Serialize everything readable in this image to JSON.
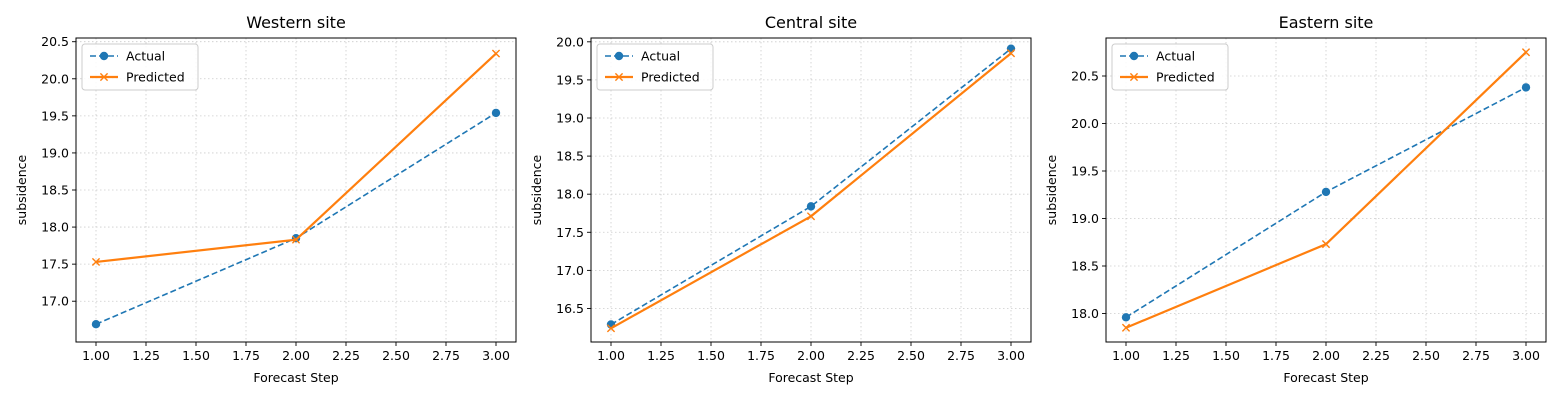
{
  "chart_data": [
    {
      "type": "line",
      "title": "Western site",
      "xlabel": "Forecast Step",
      "ylabel": "subsidence",
      "x": [
        1,
        2,
        3
      ],
      "xlim": [
        0.9,
        3.1
      ],
      "ylim": [
        16.45,
        20.55
      ],
      "xticks": [
        "1.00",
        "1.25",
        "1.50",
        "1.75",
        "2.00",
        "2.25",
        "2.50",
        "2.75",
        "3.00"
      ],
      "yticks": [
        "17.0",
        "17.5",
        "18.0",
        "18.5",
        "19.0",
        "19.5",
        "20.0",
        "20.5"
      ],
      "grid": true,
      "legend": "upper left",
      "series": [
        {
          "name": "Actual",
          "values": [
            16.69,
            17.85,
            19.54
          ],
          "color": "#1f77b4",
          "style": "dashed",
          "marker": "circle"
        },
        {
          "name": "Predicted",
          "values": [
            17.53,
            17.83,
            20.34
          ],
          "color": "#ff7f0e",
          "style": "solid",
          "marker": "x"
        }
      ]
    },
    {
      "type": "line",
      "title": "Central site",
      "xlabel": "Forecast Step",
      "ylabel": "subsidence",
      "x": [
        1,
        2,
        3
      ],
      "xlim": [
        0.9,
        3.1
      ],
      "ylim": [
        16.06,
        20.05
      ],
      "xticks": [
        "1.00",
        "1.25",
        "1.50",
        "1.75",
        "2.00",
        "2.25",
        "2.50",
        "2.75",
        "3.00"
      ],
      "yticks": [
        "16.5",
        "17.0",
        "17.5",
        "18.0",
        "18.5",
        "19.0",
        "19.5",
        "20.0"
      ],
      "grid": true,
      "legend": "upper left",
      "series": [
        {
          "name": "Actual",
          "values": [
            16.29,
            17.84,
            19.91
          ],
          "color": "#1f77b4",
          "style": "dashed",
          "marker": "circle"
        },
        {
          "name": "Predicted",
          "values": [
            16.24,
            17.71,
            19.85
          ],
          "color": "#ff7f0e",
          "style": "solid",
          "marker": "x"
        }
      ]
    },
    {
      "type": "line",
      "title": "Eastern site",
      "xlabel": "Forecast Step",
      "ylabel": "subsidence",
      "x": [
        1,
        2,
        3
      ],
      "xlim": [
        0.9,
        3.1
      ],
      "ylim": [
        17.7,
        20.9
      ],
      "xticks": [
        "1.00",
        "1.25",
        "1.50",
        "1.75",
        "2.00",
        "2.25",
        "2.50",
        "2.75",
        "3.00"
      ],
      "yticks": [
        "18.0",
        "18.5",
        "19.0",
        "19.5",
        "20.0",
        "20.5"
      ],
      "grid": true,
      "legend": "upper left",
      "series": [
        {
          "name": "Actual",
          "values": [
            17.96,
            19.28,
            20.38
          ],
          "color": "#1f77b4",
          "style": "dashed",
          "marker": "circle"
        },
        {
          "name": "Predicted",
          "values": [
            17.85,
            18.73,
            20.75
          ],
          "color": "#ff7f0e",
          "style": "solid",
          "marker": "x"
        }
      ]
    }
  ]
}
